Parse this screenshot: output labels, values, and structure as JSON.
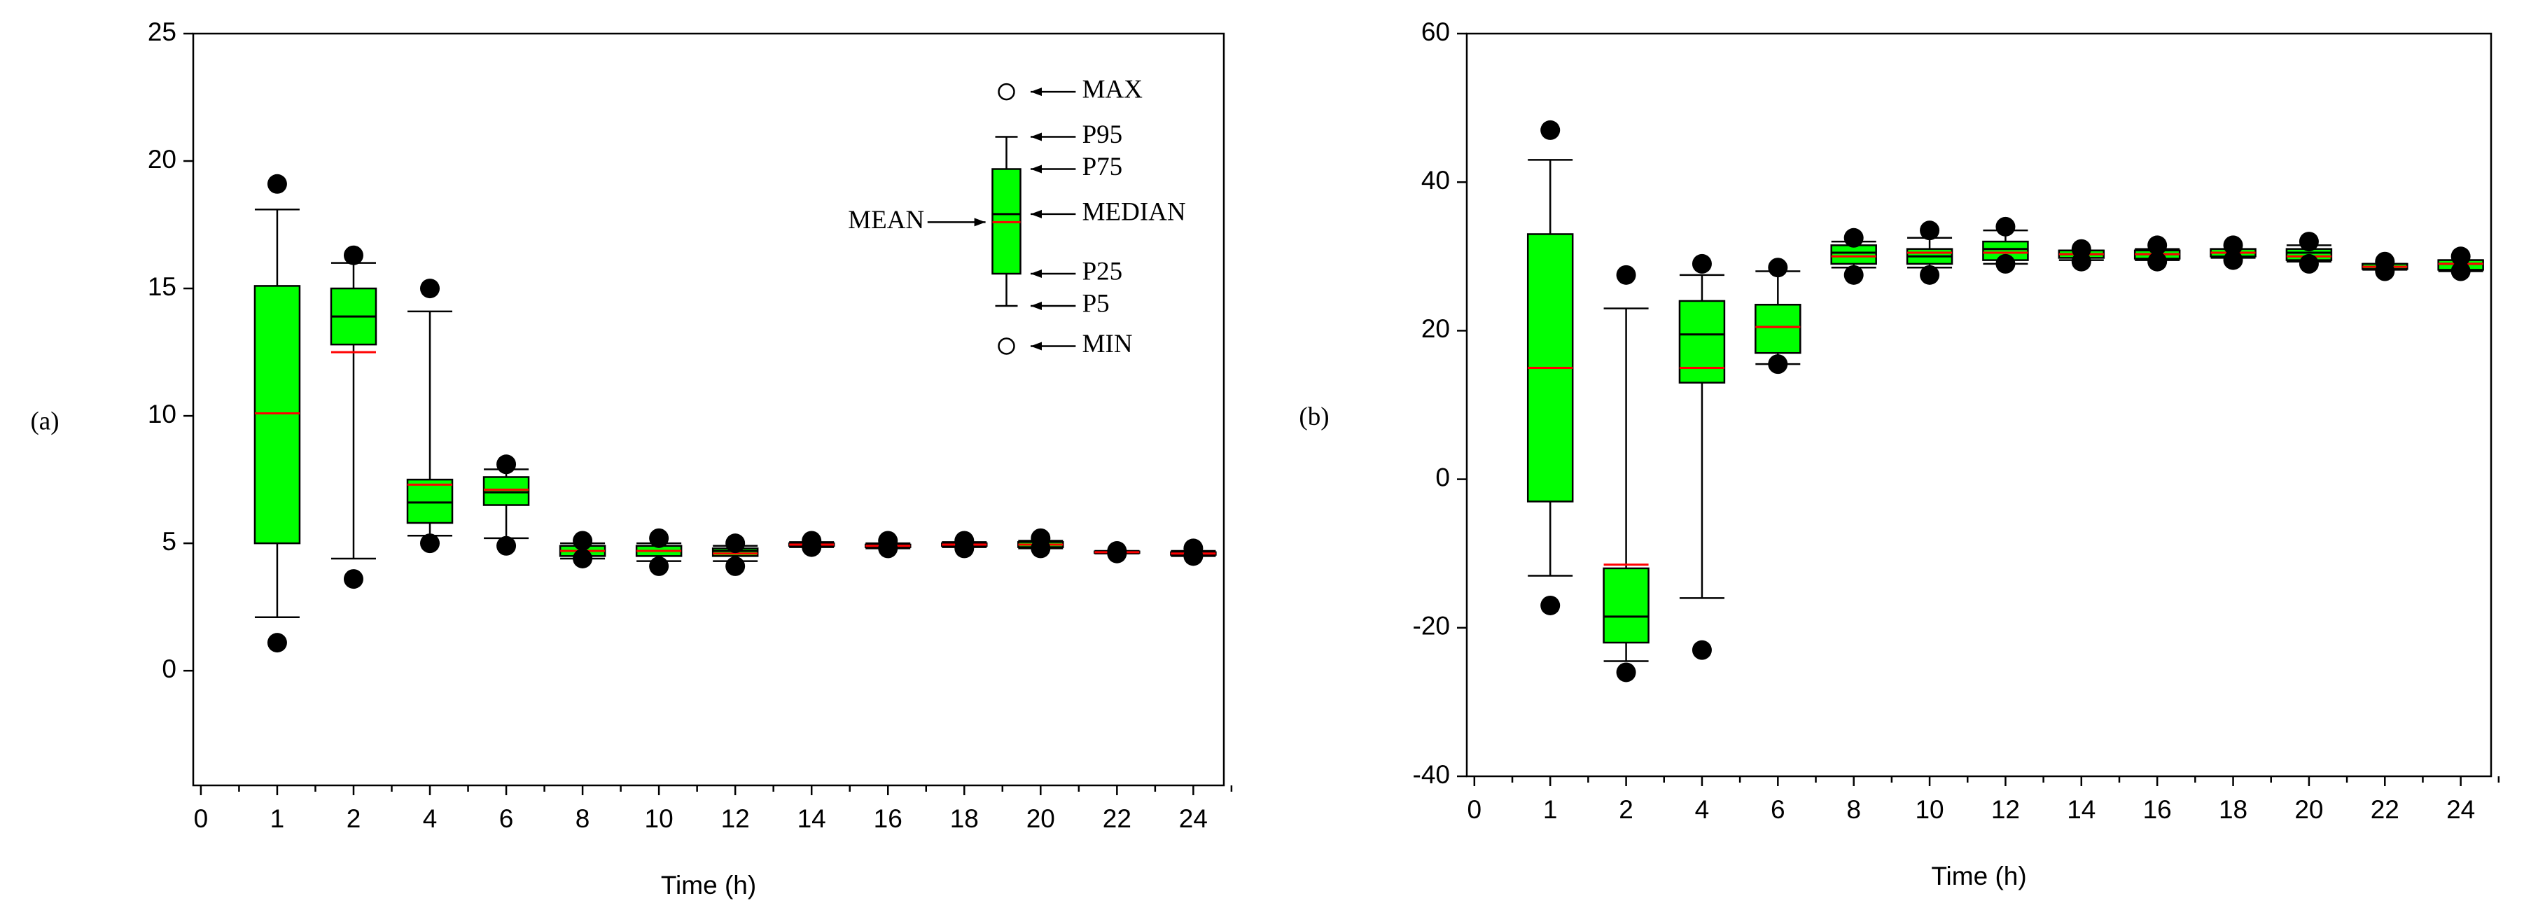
{
  "chart_data": [
    {
      "type": "box",
      "panel_label": "(a)",
      "x_label": "Time (h)",
      "categories": [
        "0",
        "1",
        "2",
        "4",
        "6",
        "8",
        "10",
        "12",
        "14",
        "16",
        "18",
        "20",
        "22",
        "24"
      ],
      "ylim": [
        -4.5,
        25
      ],
      "yticks": [
        0,
        5,
        10,
        15,
        20,
        25
      ],
      "box_color": "#00ff00",
      "median_color": "#000000",
      "mean_color": "#ff0000",
      "legend_labels": {
        "max": "MAX",
        "p95": "P95",
        "p75": "P75",
        "median": "MEDIAN",
        "mean": "MEAN",
        "p25": "P25",
        "p5": "P5",
        "min": "MIN"
      },
      "max": [
        null,
        19.1,
        16.3,
        15.0,
        8.1,
        5.1,
        5.2,
        5.0,
        5.1,
        5.1,
        5.1,
        5.2,
        4.7,
        4.8
      ],
      "p95": [
        null,
        18.1,
        16.0,
        14.1,
        7.9,
        5.0,
        5.0,
        4.9,
        5.05,
        5.0,
        5.05,
        5.1,
        4.7,
        4.7
      ],
      "p75": [
        null,
        15.1,
        15.0,
        7.5,
        7.6,
        4.9,
        4.9,
        4.8,
        5.0,
        4.95,
        5.0,
        5.05,
        4.68,
        4.65
      ],
      "median": [
        null,
        10.1,
        13.9,
        6.6,
        7.0,
        4.7,
        4.7,
        4.7,
        4.95,
        4.9,
        4.95,
        4.95,
        4.65,
        4.6
      ],
      "mean": [
        null,
        10.1,
        12.5,
        7.3,
        7.1,
        4.7,
        4.7,
        4.6,
        4.95,
        4.9,
        4.95,
        4.95,
        4.65,
        4.6
      ],
      "p25": [
        null,
        5.0,
        12.8,
        5.8,
        6.5,
        4.5,
        4.5,
        4.5,
        4.9,
        4.85,
        4.9,
        4.85,
        4.62,
        4.55
      ],
      "p5": [
        null,
        2.1,
        4.4,
        5.3,
        5.2,
        4.4,
        4.3,
        4.3,
        4.85,
        4.8,
        4.85,
        4.8,
        4.6,
        4.5
      ],
      "min": [
        null,
        1.1,
        3.6,
        5.0,
        4.9,
        4.4,
        4.1,
        4.1,
        4.85,
        4.8,
        4.8,
        4.8,
        4.6,
        4.5
      ]
    },
    {
      "type": "box",
      "panel_label": "(b)",
      "x_label": "Time (h)",
      "categories": [
        "0",
        "1",
        "2",
        "4",
        "6",
        "8",
        "10",
        "12",
        "14",
        "16",
        "18",
        "20",
        "22",
        "24"
      ],
      "ylim": [
        -40,
        60
      ],
      "yticks": [
        -40,
        -20,
        0,
        20,
        40,
        60
      ],
      "box_color": "#00ff00",
      "median_color": "#000000",
      "mean_color": "#ff0000",
      "max": [
        null,
        47,
        27.5,
        29,
        28.5,
        32.5,
        33.5,
        34,
        31,
        31.5,
        31.5,
        32,
        29.3,
        30
      ],
      "p95": [
        null,
        43,
        23,
        27.5,
        28,
        32,
        32.5,
        33.5,
        30.8,
        31,
        31,
        31.5,
        29,
        29.5
      ],
      "p75": [
        null,
        33,
        -12,
        24,
        23.5,
        31.5,
        31,
        32,
        30.8,
        30.8,
        31,
        31,
        29,
        29.5
      ],
      "median": [
        null,
        15,
        -18.5,
        19.5,
        20.5,
        30.5,
        30,
        31,
        30.3,
        30.3,
        30.5,
        30.5,
        28.6,
        29
      ],
      "mean": [
        null,
        15,
        -11.5,
        15,
        20.5,
        30,
        30.5,
        30.5,
        30.3,
        30.3,
        30.5,
        30,
        28.6,
        29
      ],
      "p25": [
        null,
        -3,
        -22,
        13,
        17,
        29,
        29,
        29.5,
        29.8,
        29.7,
        30,
        29.5,
        28.3,
        28.2
      ],
      "p5": [
        null,
        -13,
        -24.5,
        -16,
        15.5,
        28.5,
        28.5,
        29,
        29.5,
        29.5,
        29.8,
        29.3,
        28.2,
        28
      ],
      "min": [
        null,
        -17,
        -26,
        -23,
        15.5,
        27.5,
        27.5,
        29,
        29.3,
        29.3,
        29.5,
        29,
        28,
        28
      ]
    }
  ]
}
